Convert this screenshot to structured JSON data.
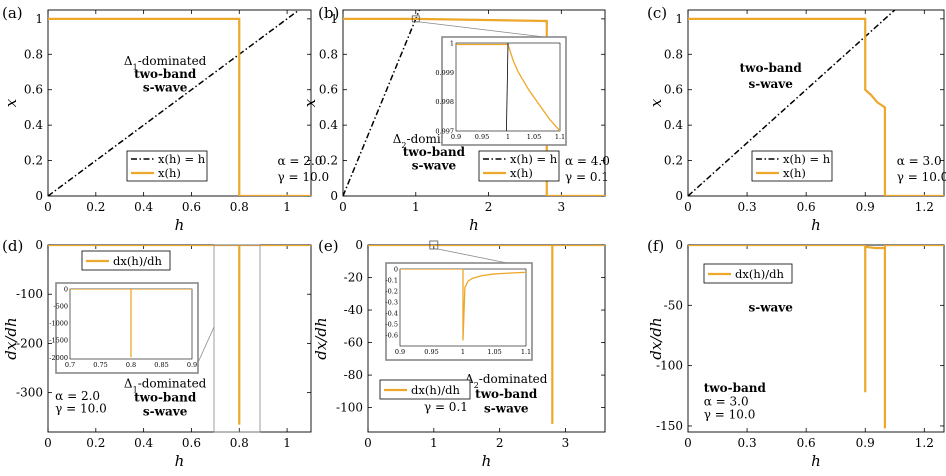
{
  "colors": {
    "series": "#EDA72A",
    "diagonal": "#000000",
    "axis": "#000000",
    "inset_frame": "#888888"
  },
  "chart_data": [
    {
      "type": "line",
      "panel_label": "(a)",
      "xlabel": "h",
      "ylabel": "x",
      "xlim": [
        0,
        1.1
      ],
      "ylim": [
        0,
        1.05
      ],
      "xticks": [
        0,
        0.2,
        0.4,
        0.6,
        0.8,
        1
      ],
      "xtick_labels": [
        "0",
        "0.2",
        "0.4",
        "0.6",
        "0.8",
        "1"
      ],
      "yticks": [
        0,
        0.2,
        0.4,
        0.6,
        0.8,
        1
      ],
      "ytick_labels": [
        "0",
        "0.2",
        "0.4",
        "0.6",
        "0.8",
        "1"
      ],
      "series": [
        {
          "name": "x(h) = h",
          "style": "dashdot",
          "color": "#000000",
          "x": [
            0,
            1.1
          ],
          "y": [
            0,
            1.1
          ]
        },
        {
          "name": "x(h)",
          "style": "solid",
          "color": "#EDA72A",
          "x": [
            0,
            0.8,
            0.8,
            1.1
          ],
          "y": [
            1,
            1,
            0,
            0
          ]
        }
      ],
      "legend": [
        "x(h) = h",
        "x(h)"
      ],
      "legend_position": "lower-center",
      "annotations": [
        {
          "text": "Δ1-dominated",
          "bold": false,
          "at": [
            0.49,
            0.74
          ]
        },
        {
          "text": "two-band",
          "bold": true,
          "at": [
            0.49,
            0.665
          ]
        },
        {
          "text": "s-wave",
          "bold": true,
          "at": [
            0.49,
            0.59
          ]
        },
        {
          "text": "α = 2.0",
          "bold": false,
          "at": [
            0.96,
            0.175
          ]
        },
        {
          "text": "γ = 10.0",
          "bold": false,
          "at": [
            0.96,
            0.085
          ]
        }
      ]
    },
    {
      "type": "line",
      "panel_label": "(b)",
      "xlabel": "h",
      "ylabel": "x",
      "xlim": [
        0,
        3.6
      ],
      "ylim": [
        0,
        1.05
      ],
      "xticks": [
        0,
        1,
        2,
        3
      ],
      "xtick_labels": [
        "0",
        "1",
        "2",
        "3"
      ],
      "yticks": [
        0,
        0.2,
        0.4,
        0.6,
        0.8,
        1
      ],
      "ytick_labels": [
        "0",
        "0.2",
        "0.4",
        "0.6",
        "0.8",
        "1"
      ],
      "series": [
        {
          "name": "x(h) = h",
          "style": "dashdot",
          "color": "#000000",
          "x": [
            0,
            1.1
          ],
          "y": [
            0,
            1.1
          ]
        },
        {
          "name": "x(h)",
          "style": "solid",
          "color": "#EDA72A",
          "x": [
            0,
            1.0,
            2.8,
            2.8,
            3.6
          ],
          "y": [
            1,
            1,
            0.988,
            0,
            0
          ]
        }
      ],
      "legend": [
        "x(h) = h",
        "x(h)"
      ],
      "legend_position": "lower-right",
      "annotations": [
        {
          "text": "Δ2-dominated",
          "bold": false,
          "at": [
            1.25,
            0.3
          ]
        },
        {
          "text": "two-band",
          "bold": true,
          "at": [
            1.25,
            0.225
          ]
        },
        {
          "text": "s-wave",
          "bold": true,
          "at": [
            1.25,
            0.15
          ]
        },
        {
          "text": "α = 4.0",
          "bold": false,
          "at": [
            3.05,
            0.175
          ]
        },
        {
          "text": "γ = 0.1",
          "bold": false,
          "at": [
            3.05,
            0.085
          ]
        }
      ],
      "inset": {
        "xlim": [
          0.9,
          1.1
        ],
        "ylim": [
          0.997,
          1.0
        ],
        "xtick_labels": [
          "0.9",
          "0.95",
          "1",
          "1.05",
          "1.1"
        ],
        "ytick_labels": [
          "0.997",
          "0.998",
          "0.999",
          "1"
        ],
        "series": [
          {
            "color": "#EDA72A",
            "x": [
              0.9,
              1.0,
              1.01,
              1.02,
              1.04,
              1.06,
              1.08,
              1.1
            ],
            "y": [
              0.99995,
              0.99995,
              0.9994,
              0.999,
              0.9984,
              0.9979,
              0.9974,
              0.997
            ]
          },
          {
            "color": "#000000",
            "x": [
              0.997,
              1.0
            ],
            "y": [
              0.997,
              1.0
            ]
          }
        ]
      }
    },
    {
      "type": "line",
      "panel_label": "(c)",
      "xlabel": "h",
      "ylabel": "x",
      "xlim": [
        0,
        1.3
      ],
      "ylim": [
        0,
        1.05
      ],
      "xticks": [
        0,
        0.3,
        0.6,
        0.9,
        1.2
      ],
      "xtick_labels": [
        "0",
        "0.3",
        "0.6",
        "0.9",
        "1.2"
      ],
      "yticks": [
        0,
        0.2,
        0.4,
        0.6,
        0.8,
        1
      ],
      "ytick_labels": [
        "0",
        "0.2",
        "0.4",
        "0.6",
        "0.8",
        "1"
      ],
      "series": [
        {
          "name": "x(h) = h",
          "style": "dashdot",
          "color": "#000000",
          "x": [
            0,
            1.1
          ],
          "y": [
            0,
            1.1
          ]
        },
        {
          "name": "x(h)",
          "style": "solid",
          "color": "#EDA72A",
          "x": [
            0,
            0.9,
            0.9,
            0.93,
            0.96,
            1.0,
            1.0,
            1.3
          ],
          "y": [
            1,
            1,
            0.6,
            0.57,
            0.53,
            0.5,
            0,
            0
          ]
        }
      ],
      "legend": [
        "x(h) = h",
        "x(h)"
      ],
      "legend_position": "lower-center",
      "annotations": [
        {
          "text": "two-band",
          "bold": true,
          "at": [
            0.42,
            0.7
          ]
        },
        {
          "text": "s-wave",
          "bold": true,
          "at": [
            0.42,
            0.61
          ]
        },
        {
          "text": "α = 3.0",
          "bold": false,
          "at": [
            1.06,
            0.175
          ]
        },
        {
          "text": "γ = 10.0",
          "bold": false,
          "at": [
            1.06,
            0.085
          ]
        }
      ]
    },
    {
      "type": "line",
      "panel_label": "(d)",
      "xlabel": "h",
      "ylabel": "dx/dh",
      "xlim": [
        0,
        1.1
      ],
      "ylim": [
        -380,
        0
      ],
      "xticks": [
        0,
        0.2,
        0.4,
        0.6,
        0.8,
        1
      ],
      "xtick_labels": [
        "0",
        "0.2",
        "0.4",
        "0.6",
        "0.8",
        "1"
      ],
      "yticks": [
        0,
        -100,
        -200,
        -300
      ],
      "ytick_labels": [
        "0",
        "-100",
        "-200",
        "-300"
      ],
      "series": [
        {
          "name": "dx(h)/dh",
          "style": "solid",
          "color": "#EDA72A",
          "x": [
            0,
            0.8,
            0.8,
            0.8,
            1.1
          ],
          "y": [
            0,
            0,
            -365,
            0,
            0
          ]
        }
      ],
      "legend": [
        "dx(h)/dh"
      ],
      "legend_position": "top-left",
      "annotations": [
        {
          "text": "α = 2.0",
          "bold": false,
          "at": [
            0.03,
            -315
          ]
        },
        {
          "text": "γ = 10.0",
          "bold": false,
          "at": [
            0.03,
            -340
          ]
        },
        {
          "text": "Δ1-dominated",
          "bold": false,
          "at": [
            0.49,
            -290
          ]
        },
        {
          "text": "two-band",
          "bold": true,
          "at": [
            0.49,
            -318
          ]
        },
        {
          "text": "s-wave",
          "bold": true,
          "at": [
            0.49,
            -346
          ]
        }
      ],
      "inset": {
        "xlim": [
          0.7,
          0.9
        ],
        "ylim": [
          -2050,
          0
        ],
        "xtick_labels": [
          "0.7",
          "0.75",
          "0.8",
          "0.85",
          "0.9"
        ],
        "ytick_labels": [
          "0",
          "-500",
          "-1000",
          "-1500",
          "-2000"
        ],
        "series": [
          {
            "color": "#EDA72A",
            "x": [
              0.7,
              0.8,
              0.8,
              0.8,
              0.9
            ],
            "y": [
              0,
              0,
              -2000,
              0,
              0
            ]
          }
        ]
      }
    },
    {
      "type": "line",
      "panel_label": "(e)",
      "xlabel": "h",
      "ylabel": "dx/dh",
      "xlim": [
        0,
        3.6
      ],
      "ylim": [
        -115,
        0
      ],
      "xticks": [
        0,
        1,
        2,
        3
      ],
      "xtick_labels": [
        "0",
        "1",
        "2",
        "3"
      ],
      "yticks": [
        0,
        -20,
        -40,
        -60,
        -80,
        -100
      ],
      "ytick_labels": [
        "0",
        "-20",
        "-40",
        "-60",
        "-80",
        "-100"
      ],
      "series": [
        {
          "name": "dx(h)/dh",
          "style": "solid",
          "color": "#EDA72A",
          "x": [
            0,
            2.8,
            2.8,
            2.8,
            3.6
          ],
          "y": [
            0,
            0,
            -110,
            0,
            0
          ]
        }
      ],
      "legend": [
        "dx(h)/dh"
      ],
      "legend_position": "lower-left",
      "annotations": [
        {
          "text": "α = 4.0",
          "bold": false,
          "at": [
            0.85,
            -93
          ]
        },
        {
          "text": "γ = 0.1",
          "bold": false,
          "at": [
            0.85,
            -102
          ]
        },
        {
          "text": "Δ2-dominated",
          "bold": false,
          "at": [
            2.1,
            -85
          ]
        },
        {
          "text": "two-band",
          "bold": true,
          "at": [
            2.1,
            -94
          ]
        },
        {
          "text": "s-wave",
          "bold": true,
          "at": [
            2.1,
            -103
          ]
        }
      ],
      "inset": {
        "xlim": [
          0.9,
          1.1
        ],
        "ylim": [
          -0.7,
          0
        ],
        "xtick_labels": [
          "0.9",
          "0.95",
          "1",
          "1.05",
          "1.1"
        ],
        "ytick_labels": [
          "0",
          "-0.1",
          "-0.2",
          "-0.3",
          "-0.4",
          "-0.5",
          "-0.6"
        ],
        "series": [
          {
            "color": "#EDA72A",
            "x": [
              0.9,
              1.0,
              1.0,
              1.003,
              1.008,
              1.015,
              1.03,
              1.05,
              1.08,
              1.1
            ],
            "y": [
              0,
              0,
              -0.65,
              -0.17,
              -0.11,
              -0.085,
              -0.06,
              -0.045,
              -0.035,
              -0.03
            ]
          }
        ]
      }
    },
    {
      "type": "line",
      "panel_label": "(f)",
      "xlabel": "h",
      "ylabel": "dx/dh",
      "xlim": [
        0,
        1.3
      ],
      "ylim": [
        -155,
        0
      ],
      "xticks": [
        0,
        0.3,
        0.6,
        0.9,
        1.2
      ],
      "xtick_labels": [
        "0",
        "0.3",
        "0.6",
        "0.9",
        "1.2"
      ],
      "yticks": [
        0,
        -50,
        -100,
        -150
      ],
      "ytick_labels": [
        "0",
        "-50",
        "-100",
        "-150"
      ],
      "series": [
        {
          "name": "dx(h)/dh",
          "style": "solid",
          "color": "#EDA72A",
          "x": [
            0,
            0.9,
            0.9,
            0.9,
            0.95,
            1.0,
            1.0,
            1.0,
            1.3
          ],
          "y": [
            0,
            0,
            -122,
            -1.5,
            -2.5,
            -2.5,
            -152,
            0,
            0
          ]
        }
      ],
      "legend": [
        "dx(h)/dh"
      ],
      "legend_position": "top-left",
      "annotations": [
        {
          "text": "s-wave",
          "bold": true,
          "at": [
            0.42,
            -55
          ]
        },
        {
          "text": "two-band",
          "bold": true,
          "at": [
            0.08,
            -122
          ]
        },
        {
          "text": "α = 3.0",
          "bold": false,
          "at": [
            0.08,
            -133
          ]
        },
        {
          "text": "γ = 10.0",
          "bold": false,
          "at": [
            0.08,
            -144
          ]
        }
      ]
    }
  ]
}
